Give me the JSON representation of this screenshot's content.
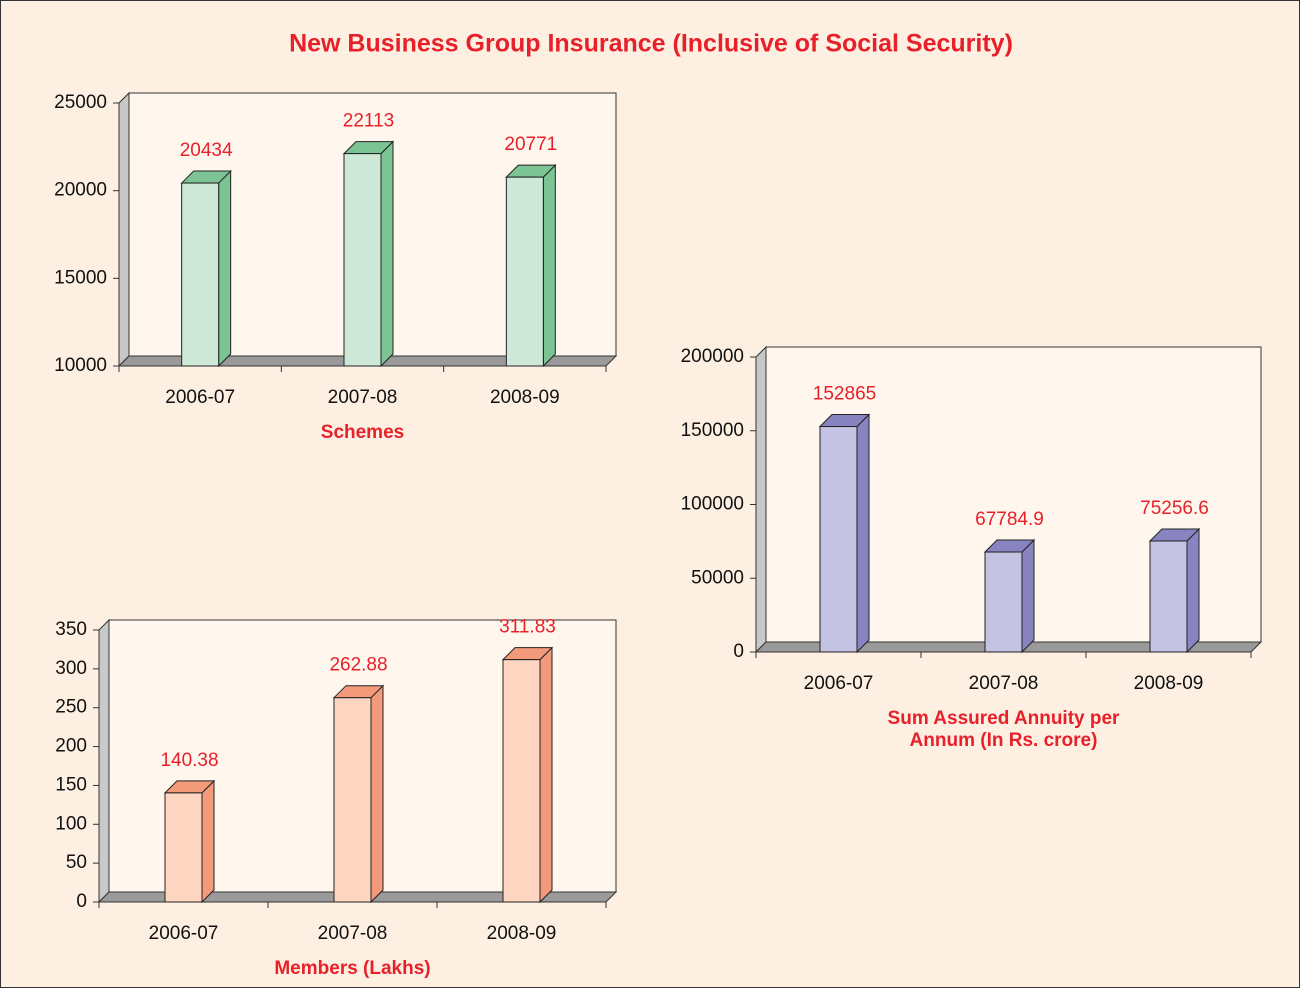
{
  "title": "New Business Group Insurance (Inclusive of Social Security)",
  "chart_data": [
    {
      "type": "bar",
      "x_label": "Schemes",
      "categories": [
        "2006-07",
        "2007-08",
        "2008-09"
      ],
      "values": [
        20434,
        22113,
        20771
      ],
      "color": "#cde8d6",
      "side_color": "#7cc494",
      "ylim": [
        10000,
        25000
      ],
      "yticks": [
        10000,
        15000,
        20000,
        25000
      ]
    },
    {
      "type": "bar",
      "x_label": "Sum Assured Annuity per Annum (In Rs. crore)",
      "categories": [
        "2006-07",
        "2007-08",
        "2008-09"
      ],
      "values": [
        152865,
        67784.9,
        75256.6
      ],
      "color": "#c5c3e3",
      "side_color": "#8884c2",
      "ylim": [
        0,
        200000
      ],
      "yticks": [
        0,
        50000,
        100000,
        150000,
        200000
      ]
    },
    {
      "type": "bar",
      "x_label": "Members (Lakhs)",
      "categories": [
        "2006-07",
        "2007-08",
        "2008-09"
      ],
      "values": [
        140.38,
        262.88,
        311.83
      ],
      "color": "#fdd5c0",
      "side_color": "#f29a7a",
      "ylim": [
        0,
        350
      ],
      "yticks": [
        0,
        50,
        100,
        150,
        200,
        250,
        300,
        350
      ]
    }
  ]
}
